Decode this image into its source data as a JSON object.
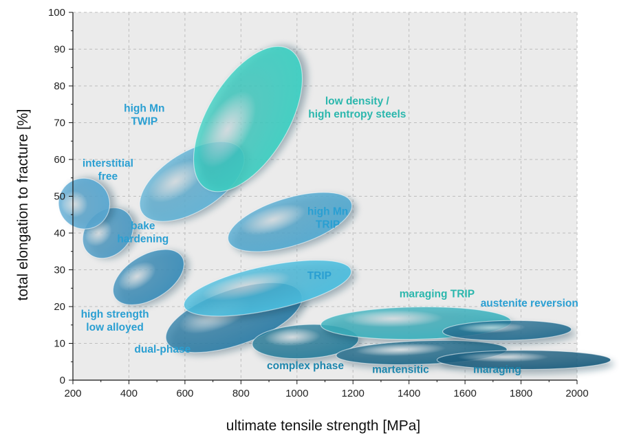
{
  "chart_data": {
    "type": "ellipse-region-map",
    "xlabel": "ultimate tensile strength [MPa]",
    "ylabel": "total elongation to fracture [%]",
    "xlim": [
      200,
      2000
    ],
    "ylim": [
      0,
      100
    ],
    "xticks": [
      200,
      400,
      600,
      800,
      1000,
      1200,
      1400,
      1600,
      1800,
      2000
    ],
    "yticks": [
      0,
      10,
      20,
      30,
      40,
      50,
      60,
      70,
      80,
      90,
      100
    ],
    "grid": true,
    "regions": [
      {
        "name": "dual-phase",
        "label": [
          "dual-phase"
        ],
        "cx": 775,
        "cy": 17,
        "rx": 255,
        "ry": 7.5,
        "rot": -19,
        "color": "#2f7fa8",
        "label_x": 520,
        "label_y": 7.5
      },
      {
        "name": "high strength low alloyed",
        "label": [
          "high strength",
          "low alloyed"
        ],
        "cx": 470,
        "cy": 28,
        "rx": 140,
        "ry": 6,
        "rot": -31,
        "color": "#3c8fbb",
        "label_x": 350,
        "label_y": 17
      },
      {
        "name": "bake hardening",
        "label": [
          "bake",
          "hardening"
        ],
        "cx": 325,
        "cy": 40,
        "rx": 100,
        "ry": 6,
        "rot": -45,
        "color": "#4e9cc6",
        "label_x": 450,
        "label_y": 41
      },
      {
        "name": "interstitial free",
        "label": [
          "interstitial",
          "free"
        ],
        "cx": 240,
        "cy": 48,
        "rx": 90,
        "ry": 7,
        "rot": -55,
        "color": "#5aa9d3",
        "label_x": 325,
        "label_y": 58
      },
      {
        "name": "high Mn TWIP",
        "label": [
          "high Mn",
          "TWIP"
        ],
        "cx": 625,
        "cy": 54,
        "rx": 210,
        "ry": 8,
        "rot": -32,
        "color": "#62b4d7",
        "label_x": 455,
        "label_y": 73
      },
      {
        "name": "high Mn TRIP",
        "label": [
          "high Mn",
          "TRIP"
        ],
        "cx": 975,
        "cy": 43,
        "rx": 230,
        "ry": 6.5,
        "rot": -17,
        "color": "#54abd2",
        "label_x": 1110,
        "label_y": 45
      },
      {
        "name": "TRIP",
        "label": [
          "TRIP"
        ],
        "cx": 895,
        "cy": 25,
        "rx": 305,
        "ry": 6,
        "rot": -12,
        "color": "#4cbfe0",
        "label_x": 1080,
        "label_y": 27.5
      },
      {
        "name": "low density / high entropy steels",
        "label": [
          "low density /",
          "high entropy steels"
        ],
        "cx": 825,
        "cy": 71,
        "rx": 290,
        "ry": 11,
        "rot": -59,
        "color": "#3ed2c4",
        "label_x": 1215,
        "label_y": 75
      },
      {
        "name": "complex phase",
        "label": [
          "complex phase"
        ],
        "cx": 1030,
        "cy": 10.5,
        "rx": 190,
        "ry": 4.6,
        "rot": -3,
        "color": "#2a7f9c",
        "label_x": 1030,
        "label_y": 3
      },
      {
        "name": "maraging TRIP",
        "label": [
          "maraging TRIP"
        ],
        "cx": 1425,
        "cy": 15.5,
        "rx": 340,
        "ry": 4.4,
        "rot": -1,
        "color": "#3cb3bf",
        "label_x": 1500,
        "label_y": 22.5
      },
      {
        "name": "martensitic",
        "label": [
          "martensitic"
        ],
        "cx": 1445,
        "cy": 7.5,
        "rx": 305,
        "ry": 3.2,
        "rot": -2,
        "color": "#226c8c",
        "label_x": 1370,
        "label_y": 2
      },
      {
        "name": "austenite reversion",
        "label": [
          "austenite reversion"
        ],
        "cx": 1750,
        "cy": 13.5,
        "rx": 230,
        "ry": 2.7,
        "rot": -1,
        "color": "#266f92",
        "label_x": 1830,
        "label_y": 20
      },
      {
        "name": "maraging",
        "label": [
          "maraging"
        ],
        "cx": 1810,
        "cy": 5.5,
        "rx": 310,
        "ry": 2.6,
        "rot": 0,
        "color": "#1d5f80",
        "label_x": 1715,
        "label_y": 2
      }
    ]
  },
  "colors": {
    "plot_background": "#ebebeb",
    "grid": "#bdbdbd",
    "label_blue": "#2a9fd2",
    "label_teal": "#2bb7ad",
    "label_dark": "#1d86ad"
  }
}
